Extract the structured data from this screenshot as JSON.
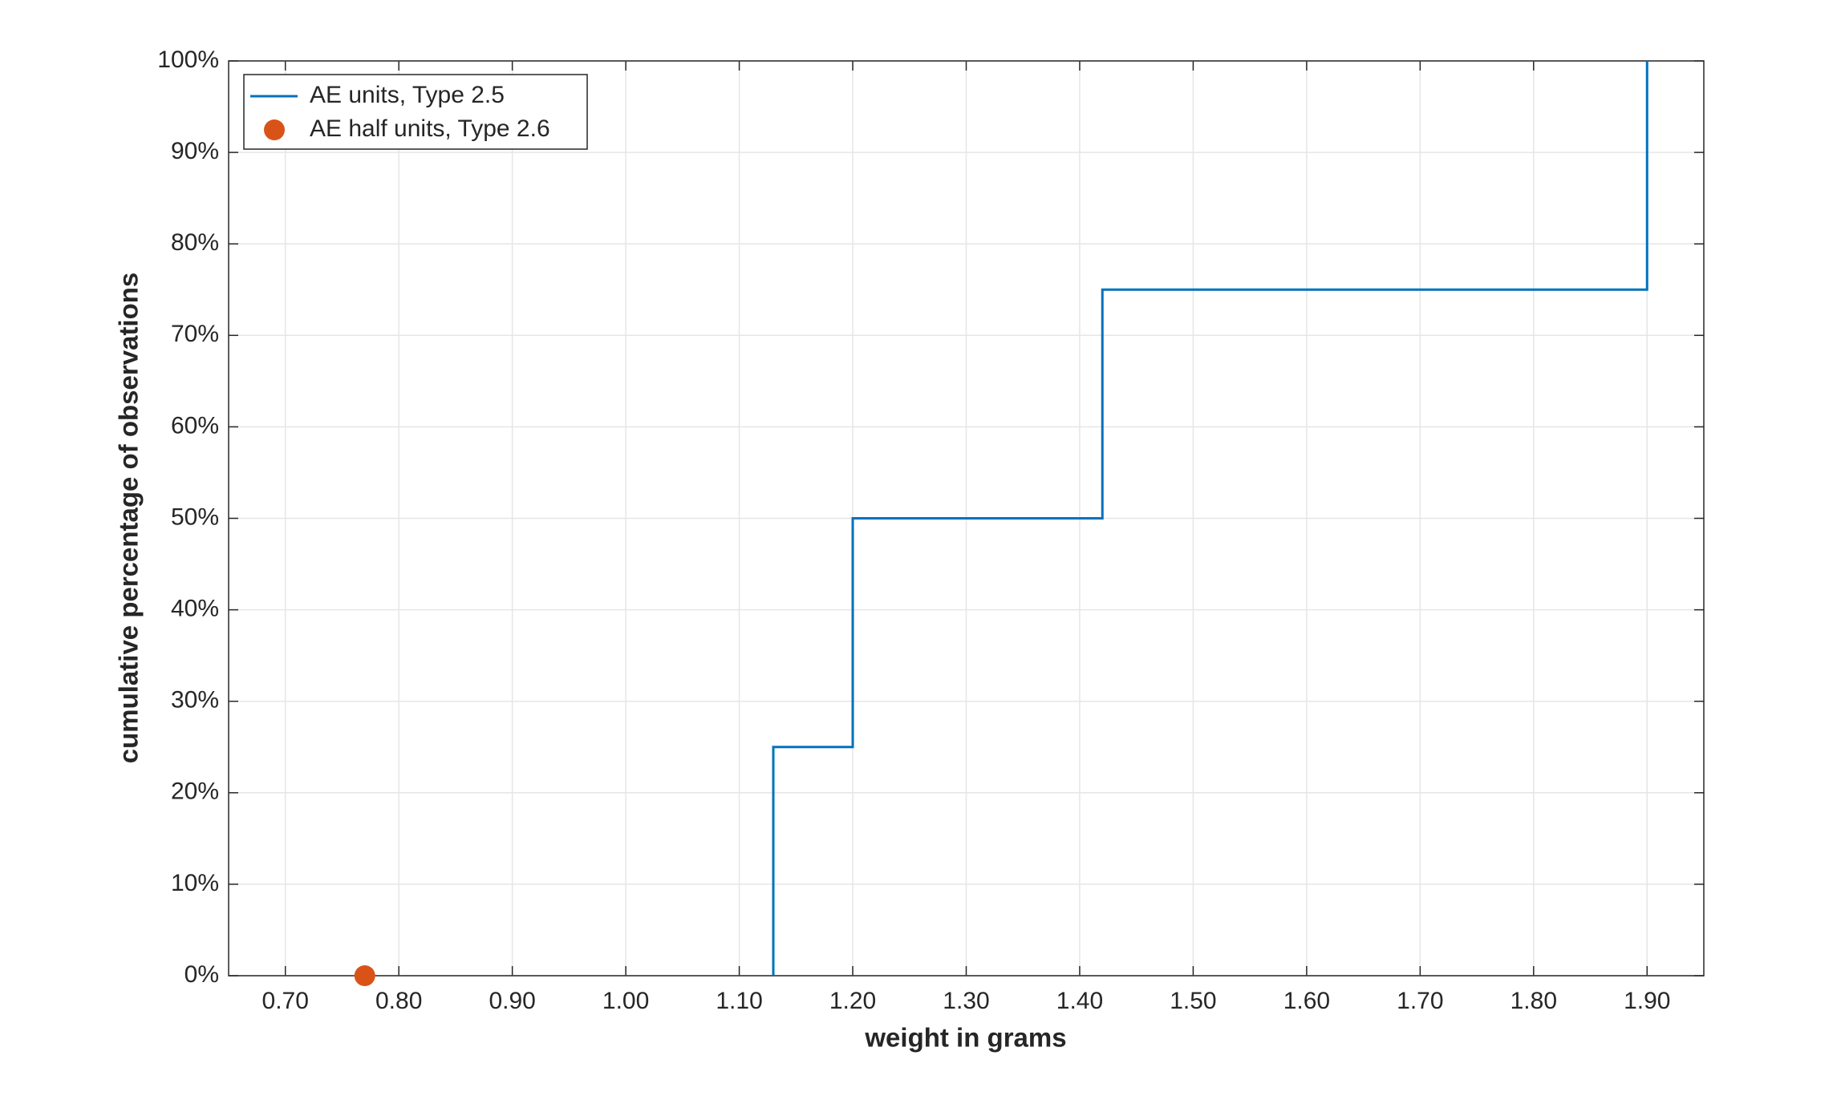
{
  "chart_data": {
    "type": "line",
    "xlabel": "weight in grams",
    "ylabel": "cumulative percentage of observations",
    "xlim": [
      0.65,
      1.95
    ],
    "ylim": [
      0,
      100
    ],
    "xticks": [
      {
        "value": 0.7,
        "label": "0.70"
      },
      {
        "value": 0.8,
        "label": "0.80"
      },
      {
        "value": 0.9,
        "label": "0.90"
      },
      {
        "value": 1.0,
        "label": "1.00"
      },
      {
        "value": 1.1,
        "label": "1.10"
      },
      {
        "value": 1.2,
        "label": "1.20"
      },
      {
        "value": 1.3,
        "label": "1.30"
      },
      {
        "value": 1.4,
        "label": "1.40"
      },
      {
        "value": 1.5,
        "label": "1.50"
      },
      {
        "value": 1.6,
        "label": "1.60"
      },
      {
        "value": 1.7,
        "label": "1.70"
      },
      {
        "value": 1.8,
        "label": "1.80"
      },
      {
        "value": 1.9,
        "label": "1.90"
      }
    ],
    "yticks": [
      {
        "value": 0,
        "label": "0%"
      },
      {
        "value": 10,
        "label": "10%"
      },
      {
        "value": 20,
        "label": "20%"
      },
      {
        "value": 30,
        "label": "30%"
      },
      {
        "value": 40,
        "label": "40%"
      },
      {
        "value": 50,
        "label": "50%"
      },
      {
        "value": 60,
        "label": "60%"
      },
      {
        "value": 70,
        "label": "70%"
      },
      {
        "value": 80,
        "label": "80%"
      },
      {
        "value": 90,
        "label": "90%"
      },
      {
        "value": 100,
        "label": "100%"
      }
    ],
    "grid": true,
    "legend": "upper-left",
    "series": [
      {
        "name": "AE units, Type 2.5",
        "type": "line",
        "color": "#0072bd",
        "x": [
          1.13,
          1.13,
          1.2,
          1.2,
          1.42,
          1.42,
          1.9,
          1.9
        ],
        "values": [
          0,
          25,
          25,
          50,
          50,
          75,
          75,
          100
        ]
      },
      {
        "name": "AE half units, Type 2.6",
        "type": "scatter",
        "color": "#d95319",
        "x": [
          0.77
        ],
        "values": [
          0
        ]
      }
    ]
  }
}
